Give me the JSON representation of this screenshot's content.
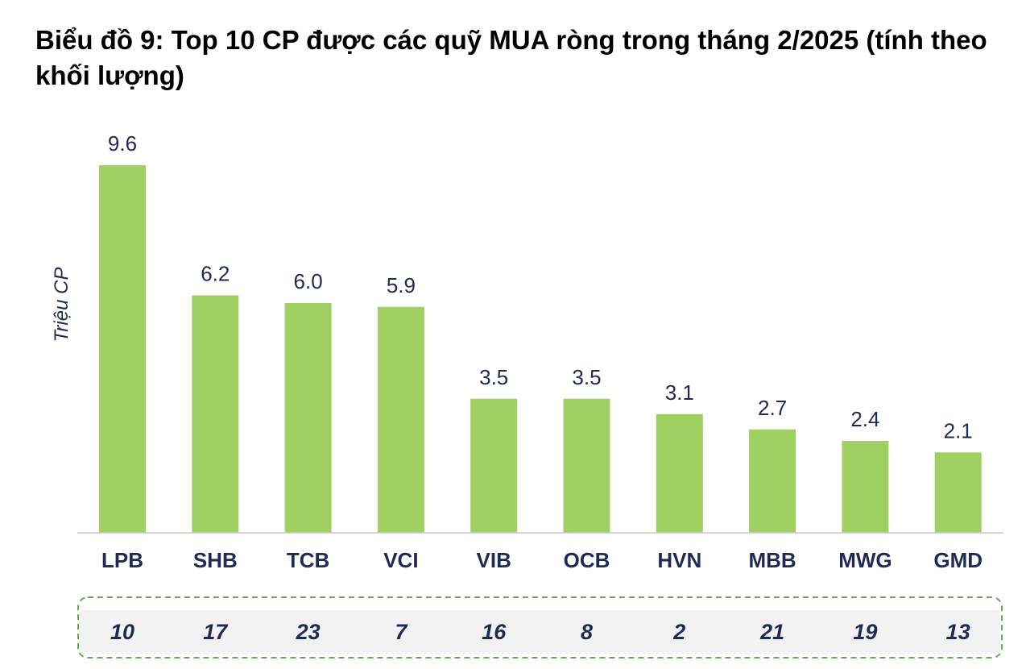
{
  "chart_data": {
    "type": "bar",
    "title": "Biểu đồ 9: Top 10 CP được các quỹ MUA ròng trong tháng 2/2025 (tính theo khối lượng)",
    "ylabel": "Triệu CP",
    "xlabel": "",
    "categories": [
      "LPB",
      "SHB",
      "TCB",
      "VCI",
      "VIB",
      "OCB",
      "HVN",
      "MBB",
      "MWG",
      "GMD"
    ],
    "values": [
      9.6,
      6.2,
      6.0,
      5.9,
      3.5,
      3.5,
      3.1,
      2.7,
      2.4,
      2.1
    ],
    "value_labels": [
      "9.6",
      "6.2",
      "6.0",
      "5.9",
      "3.5",
      "3.5",
      "3.1",
      "2.7",
      "2.4",
      "2.1"
    ],
    "ylim": [
      0,
      10
    ],
    "grid": false,
    "bar_color": "#a0cf62",
    "fund_counts": [
      10,
      17,
      23,
      7,
      16,
      8,
      2,
      21,
      19,
      13
    ]
  }
}
